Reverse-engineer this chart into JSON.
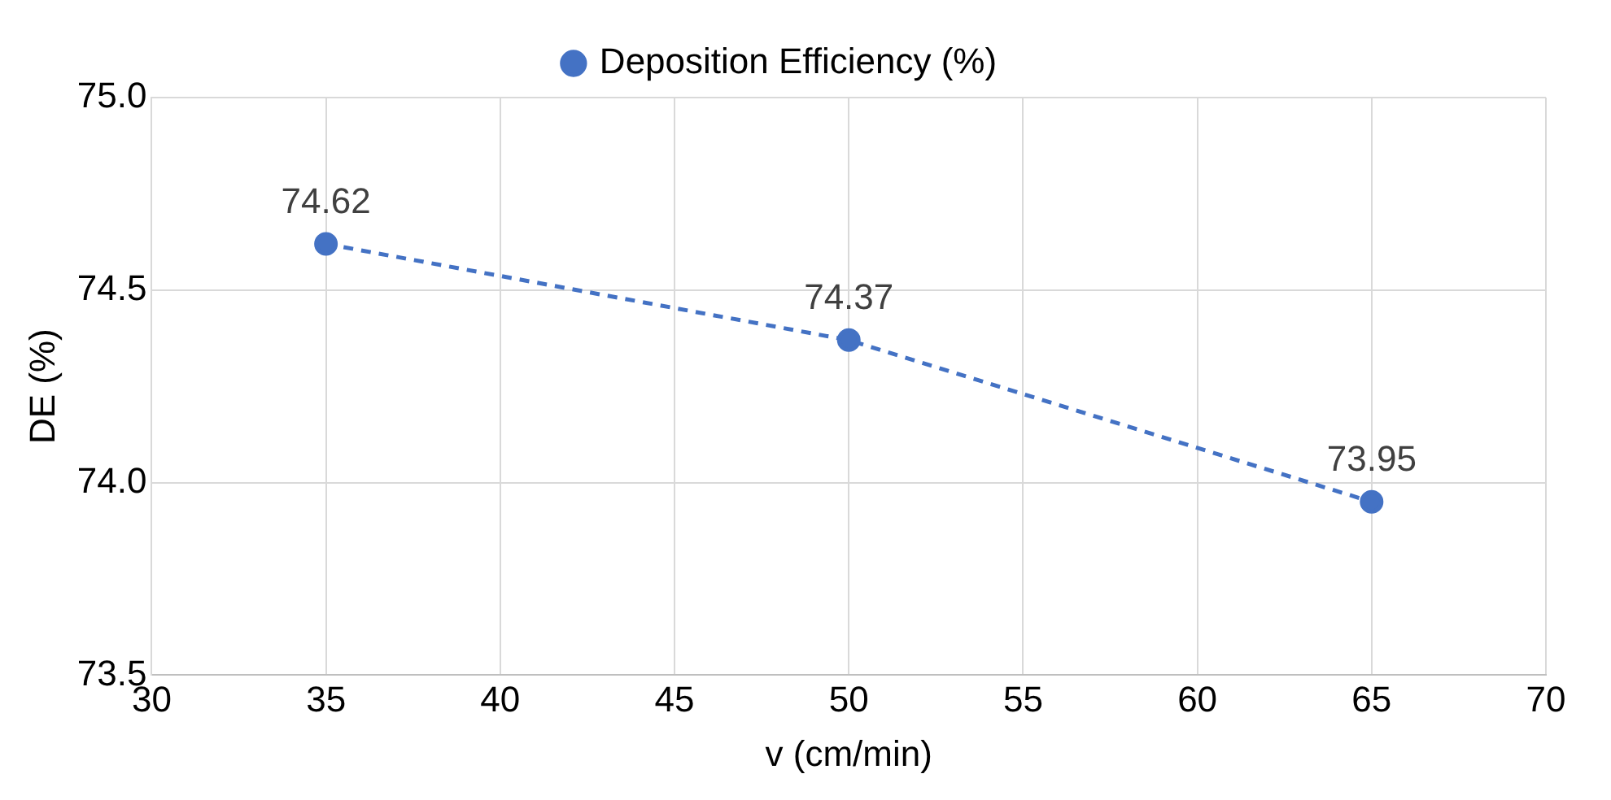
{
  "chart_data": {
    "type": "line",
    "xlabel": "v (cm/min)",
    "ylabel": "DE (%)",
    "x": [
      35,
      50,
      65
    ],
    "series": [
      {
        "name": "Deposition Efficiency (%)",
        "color": "#4472c4",
        "values": [
          74.62,
          74.37,
          73.95
        ]
      }
    ],
    "xlim": [
      30,
      70
    ],
    "xticks": [
      30,
      35,
      40,
      45,
      50,
      55,
      60,
      65,
      70
    ],
    "ylim": [
      73.5,
      75.0
    ],
    "yticks": [
      {
        "value": 73.5,
        "label": "73.5"
      },
      {
        "value": 74,
        "label": "74.0"
      },
      {
        "value": 74.5,
        "label": "74.5"
      },
      {
        "value": 75,
        "label": "75.0"
      }
    ],
    "grid": true,
    "legend": "top",
    "marker": "circle",
    "line_style": "dashed",
    "data_labels": true
  }
}
